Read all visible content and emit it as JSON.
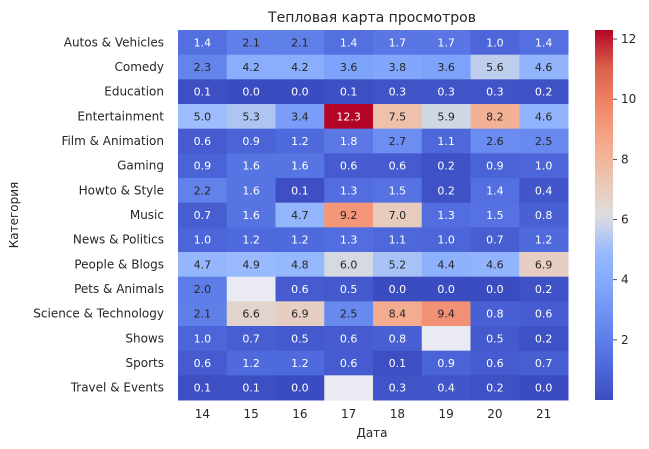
{
  "chart_data": {
    "type": "heatmap",
    "title": "Тепловая карта просмотров",
    "xlabel": "Дата",
    "ylabel": "Категория",
    "x": [
      "14",
      "15",
      "16",
      "17",
      "18",
      "19",
      "20",
      "21"
    ],
    "y": [
      "Autos & Vehicles",
      "Comedy",
      "Education",
      "Entertainment",
      "Film & Animation",
      "Gaming",
      "Howto & Style",
      "Music",
      "News & Politics",
      "People & Blogs",
      "Pets & Animals",
      "Science & Technology",
      "Shows",
      "Sports",
      "Travel & Events"
    ],
    "values": [
      [
        1.4,
        2.1,
        2.1,
        1.4,
        1.7,
        1.7,
        1.0,
        1.4
      ],
      [
        2.3,
        4.2,
        4.2,
        3.6,
        3.8,
        3.6,
        5.6,
        4.6
      ],
      [
        0.1,
        0.0,
        0.0,
        0.1,
        0.3,
        0.3,
        0.3,
        0.2
      ],
      [
        5.0,
        5.3,
        3.4,
        12.3,
        7.5,
        5.9,
        8.2,
        4.6
      ],
      [
        0.6,
        0.9,
        1.2,
        1.8,
        2.7,
        1.1,
        2.6,
        2.5
      ],
      [
        0.9,
        1.6,
        1.6,
        0.6,
        0.6,
        0.2,
        0.9,
        1.0
      ],
      [
        2.2,
        1.6,
        0.1,
        1.3,
        1.5,
        0.2,
        1.4,
        0.4
      ],
      [
        0.7,
        1.6,
        4.7,
        9.2,
        7.0,
        1.3,
        1.5,
        0.8
      ],
      [
        1.0,
        1.2,
        1.2,
        1.3,
        1.1,
        1.0,
        0.7,
        1.2
      ],
      [
        4.7,
        4.9,
        4.8,
        6.0,
        5.2,
        4.4,
        4.6,
        6.9
      ],
      [
        2.0,
        null,
        0.6,
        0.5,
        0.0,
        0.0,
        0.0,
        0.2
      ],
      [
        2.1,
        6.6,
        6.9,
        2.5,
        8.4,
        9.4,
        0.8,
        0.6
      ],
      [
        1.0,
        0.7,
        0.5,
        0.6,
        0.8,
        null,
        0.5,
        0.2
      ],
      [
        0.6,
        1.2,
        1.2,
        0.6,
        0.1,
        0.9,
        0.6,
        0.7
      ],
      [
        0.1,
        0.1,
        0.0,
        null,
        0.3,
        0.4,
        0.2,
        0.0
      ]
    ],
    "colormap": "coolwarm",
    "vmin": 0.0,
    "vmax": 12.3,
    "colorbar_ticks": [
      2,
      4,
      6,
      8,
      10,
      12
    ],
    "missing_color": "#eaeaf2",
    "annotation_light_color": "#ffffff",
    "annotation_dark_color": "#262626",
    "text_color": "#262626"
  }
}
